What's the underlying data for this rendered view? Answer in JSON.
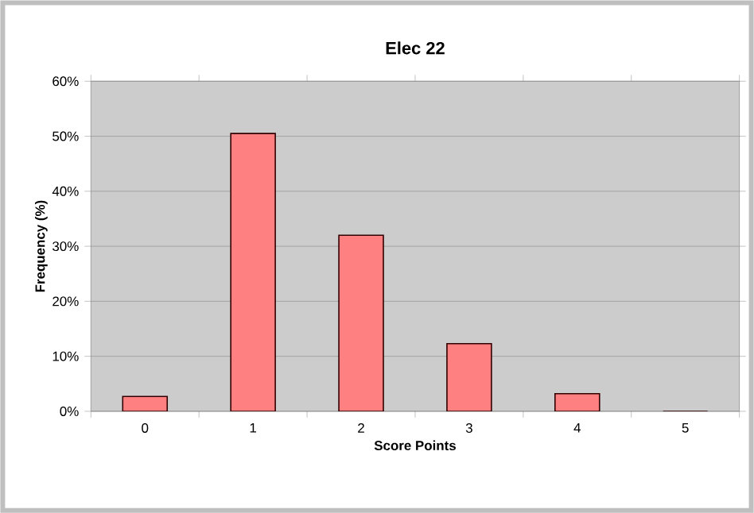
{
  "chart_data": {
    "type": "bar",
    "title": "Elec 22",
    "xlabel": "Score Points",
    "ylabel": "Frequency (%)",
    "categories": [
      "0",
      "1",
      "2",
      "3",
      "4",
      "5"
    ],
    "values": [
      2.7,
      50.5,
      32.0,
      12.3,
      3.2,
      0
    ],
    "color": "#ff8080",
    "ylim": [
      0,
      60
    ],
    "yticks": [
      {
        "value": 0,
        "label": "0%"
      },
      {
        "value": 10,
        "label": "10%"
      },
      {
        "value": 20,
        "label": "20%"
      },
      {
        "value": 30,
        "label": "30%"
      },
      {
        "value": 40,
        "label": "40%"
      },
      {
        "value": 50,
        "label": "50%"
      },
      {
        "value": 60,
        "label": "60%"
      }
    ],
    "grid": "y"
  }
}
